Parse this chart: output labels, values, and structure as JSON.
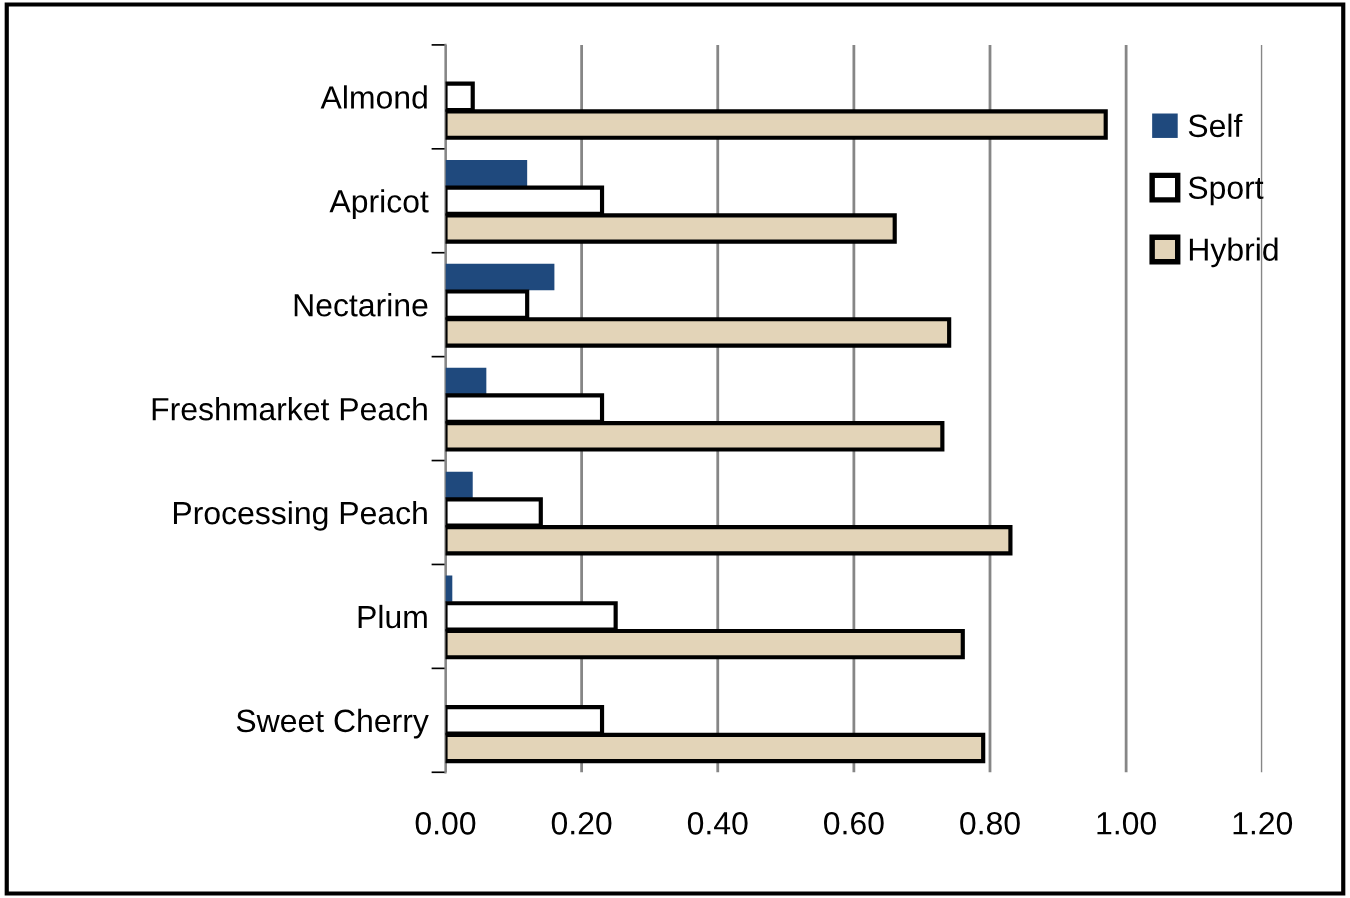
{
  "chart_data": {
    "type": "bar",
    "orientation": "horizontal",
    "categories": [
      "Almond",
      "Apricot",
      "Nectarine",
      "Freshmarket Peach",
      "Processing Peach",
      "Plum",
      "Sweet Cherry"
    ],
    "series": [
      {
        "name": "Self",
        "color": "#1f497d",
        "values": [
          0,
          0.12,
          0.16,
          0.06,
          0.04,
          0.01,
          0
        ]
      },
      {
        "name": "Sport",
        "color": "#ffffff",
        "values": [
          0.04,
          0.23,
          0.12,
          0.23,
          0.14,
          0.25,
          0.23
        ]
      },
      {
        "name": "Hybrid",
        "color": "#e3d4b8",
        "values": [
          0.97,
          0.66,
          0.74,
          0.73,
          0.83,
          0.76,
          0.79
        ]
      }
    ],
    "xlim": [
      0,
      1.2
    ],
    "xticks": [
      {
        "value": 0,
        "label": "0.00"
      },
      {
        "value": 0.2,
        "label": "0.20"
      },
      {
        "value": 0.4,
        "label": "0.40"
      },
      {
        "value": 0.6,
        "label": "0.60"
      },
      {
        "value": 0.8,
        "label": "0.80"
      },
      {
        "value": 1.0,
        "label": "1.00"
      },
      {
        "value": 1.2,
        "label": "1.20"
      }
    ],
    "grid": "x",
    "legend": "right"
  }
}
